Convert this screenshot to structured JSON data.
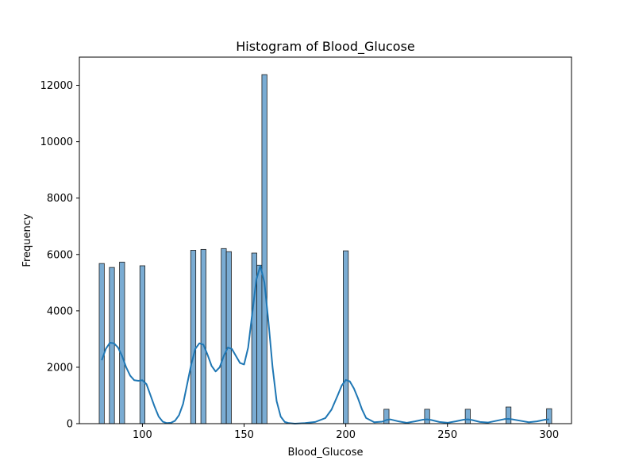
{
  "chart_data": {
    "type": "bar",
    "subtype": "histogram-with-kde",
    "title": "Histogram of Blood_Glucose",
    "xlabel": "Blood_Glucose",
    "ylabel": "Frequency",
    "xlim": [
      69,
      311
    ],
    "ylim": [
      0,
      13000
    ],
    "xticks": [
      100,
      150,
      200,
      250,
      300
    ],
    "yticks": [
      0,
      2000,
      4000,
      6000,
      8000,
      10000,
      12000
    ],
    "bin_width": 2.5,
    "bins": [
      {
        "x": 80,
        "count": 5680
      },
      {
        "x": 82.5,
        "count": 0
      },
      {
        "x": 85,
        "count": 5540
      },
      {
        "x": 87.5,
        "count": 0
      },
      {
        "x": 90,
        "count": 5730
      },
      {
        "x": 100,
        "count": 5600
      },
      {
        "x": 125,
        "count": 6150
      },
      {
        "x": 130,
        "count": 6180
      },
      {
        "x": 140,
        "count": 6210
      },
      {
        "x": 142.5,
        "count": 6100
      },
      {
        "x": 155,
        "count": 6050
      },
      {
        "x": 157.5,
        "count": 5620
      },
      {
        "x": 160,
        "count": 12380
      },
      {
        "x": 200,
        "count": 6130
      },
      {
        "x": 220,
        "count": 510
      },
      {
        "x": 240,
        "count": 510
      },
      {
        "x": 260,
        "count": 510
      },
      {
        "x": 280,
        "count": 590
      },
      {
        "x": 300,
        "count": 530
      }
    ],
    "kde": {
      "x": [
        80,
        82,
        84,
        86,
        88,
        90,
        92,
        94,
        96,
        98,
        100,
        102,
        104,
        106,
        108,
        110,
        112,
        114,
        116,
        118,
        120,
        122,
        124,
        126,
        128,
        130,
        132,
        134,
        136,
        138,
        140,
        142,
        144,
        146,
        148,
        150,
        152,
        154,
        156,
        158,
        160,
        162,
        164,
        166,
        168,
        170,
        172,
        175,
        180,
        185,
        190,
        193,
        196,
        198,
        200,
        202,
        204,
        206,
        208,
        210,
        214,
        218,
        220,
        222,
        226,
        230,
        234,
        238,
        240,
        242,
        246,
        250,
        254,
        258,
        260,
        262,
        266,
        270,
        274,
        278,
        280,
        282,
        286,
        290,
        294,
        298,
        300
      ],
      "y": [
        2250,
        2650,
        2870,
        2850,
        2700,
        2400,
        2000,
        1700,
        1540,
        1520,
        1540,
        1400,
        1000,
        600,
        250,
        70,
        20,
        30,
        100,
        300,
        700,
        1400,
        2100,
        2650,
        2850,
        2800,
        2450,
        2050,
        1850,
        2000,
        2400,
        2700,
        2650,
        2400,
        2150,
        2100,
        2700,
        3900,
        5100,
        5600,
        5000,
        3600,
        2000,
        800,
        250,
        60,
        20,
        0,
        20,
        60,
        200,
        500,
        1000,
        1350,
        1550,
        1500,
        1250,
        900,
        500,
        200,
        50,
        70,
        130,
        150,
        80,
        30,
        80,
        140,
        150,
        130,
        60,
        30,
        80,
        140,
        150,
        130,
        60,
        40,
        100,
        160,
        170,
        150,
        100,
        50,
        80,
        140,
        150
      ]
    },
    "colors": {
      "bar_fill": "#7aacd3",
      "bar_edge": "#1f1f1f",
      "kde_line": "#1f77b4",
      "axes": "#000000"
    },
    "grid": false,
    "legend": "none"
  }
}
